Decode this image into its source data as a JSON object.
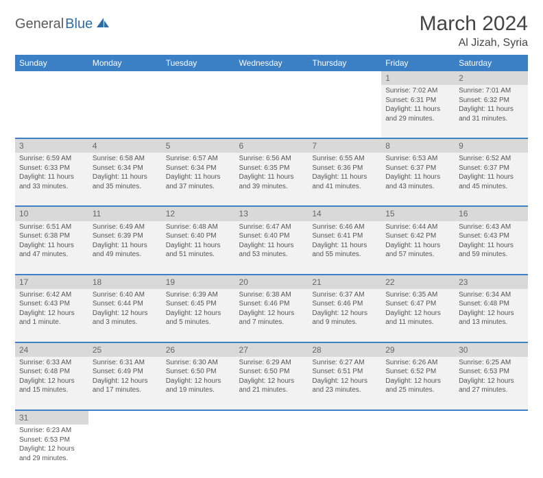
{
  "logo": {
    "part1": "General",
    "part2": "Blue"
  },
  "title": "March 2024",
  "location": "Al Jizah, Syria",
  "weekdays": [
    "Sunday",
    "Monday",
    "Tuesday",
    "Wednesday",
    "Thursday",
    "Friday",
    "Saturday"
  ],
  "colors": {
    "header_bg": "#3b7fc4",
    "daynum_bg": "#d9d9d9",
    "cell_bg": "#f2f2f2",
    "row_border": "#3b7fc4"
  },
  "weeks": [
    {
      "nums": [
        "",
        "",
        "",
        "",
        "",
        "1",
        "2"
      ],
      "cells": [
        {
          "empty": true
        },
        {
          "empty": true
        },
        {
          "empty": true
        },
        {
          "empty": true
        },
        {
          "empty": true
        },
        {
          "sunrise": "Sunrise: 7:02 AM",
          "sunset": "Sunset: 6:31 PM",
          "daylight": "Daylight: 11 hours and 29 minutes."
        },
        {
          "sunrise": "Sunrise: 7:01 AM",
          "sunset": "Sunset: 6:32 PM",
          "daylight": "Daylight: 11 hours and 31 minutes."
        }
      ]
    },
    {
      "nums": [
        "3",
        "4",
        "5",
        "6",
        "7",
        "8",
        "9"
      ],
      "cells": [
        {
          "sunrise": "Sunrise: 6:59 AM",
          "sunset": "Sunset: 6:33 PM",
          "daylight": "Daylight: 11 hours and 33 minutes."
        },
        {
          "sunrise": "Sunrise: 6:58 AM",
          "sunset": "Sunset: 6:34 PM",
          "daylight": "Daylight: 11 hours and 35 minutes."
        },
        {
          "sunrise": "Sunrise: 6:57 AM",
          "sunset": "Sunset: 6:34 PM",
          "daylight": "Daylight: 11 hours and 37 minutes."
        },
        {
          "sunrise": "Sunrise: 6:56 AM",
          "sunset": "Sunset: 6:35 PM",
          "daylight": "Daylight: 11 hours and 39 minutes."
        },
        {
          "sunrise": "Sunrise: 6:55 AM",
          "sunset": "Sunset: 6:36 PM",
          "daylight": "Daylight: 11 hours and 41 minutes."
        },
        {
          "sunrise": "Sunrise: 6:53 AM",
          "sunset": "Sunset: 6:37 PM",
          "daylight": "Daylight: 11 hours and 43 minutes."
        },
        {
          "sunrise": "Sunrise: 6:52 AM",
          "sunset": "Sunset: 6:37 PM",
          "daylight": "Daylight: 11 hours and 45 minutes."
        }
      ]
    },
    {
      "nums": [
        "10",
        "11",
        "12",
        "13",
        "14",
        "15",
        "16"
      ],
      "cells": [
        {
          "sunrise": "Sunrise: 6:51 AM",
          "sunset": "Sunset: 6:38 PM",
          "daylight": "Daylight: 11 hours and 47 minutes."
        },
        {
          "sunrise": "Sunrise: 6:49 AM",
          "sunset": "Sunset: 6:39 PM",
          "daylight": "Daylight: 11 hours and 49 minutes."
        },
        {
          "sunrise": "Sunrise: 6:48 AM",
          "sunset": "Sunset: 6:40 PM",
          "daylight": "Daylight: 11 hours and 51 minutes."
        },
        {
          "sunrise": "Sunrise: 6:47 AM",
          "sunset": "Sunset: 6:40 PM",
          "daylight": "Daylight: 11 hours and 53 minutes."
        },
        {
          "sunrise": "Sunrise: 6:46 AM",
          "sunset": "Sunset: 6:41 PM",
          "daylight": "Daylight: 11 hours and 55 minutes."
        },
        {
          "sunrise": "Sunrise: 6:44 AM",
          "sunset": "Sunset: 6:42 PM",
          "daylight": "Daylight: 11 hours and 57 minutes."
        },
        {
          "sunrise": "Sunrise: 6:43 AM",
          "sunset": "Sunset: 6:43 PM",
          "daylight": "Daylight: 11 hours and 59 minutes."
        }
      ]
    },
    {
      "nums": [
        "17",
        "18",
        "19",
        "20",
        "21",
        "22",
        "23"
      ],
      "cells": [
        {
          "sunrise": "Sunrise: 6:42 AM",
          "sunset": "Sunset: 6:43 PM",
          "daylight": "Daylight: 12 hours and 1 minute."
        },
        {
          "sunrise": "Sunrise: 6:40 AM",
          "sunset": "Sunset: 6:44 PM",
          "daylight": "Daylight: 12 hours and 3 minutes."
        },
        {
          "sunrise": "Sunrise: 6:39 AM",
          "sunset": "Sunset: 6:45 PM",
          "daylight": "Daylight: 12 hours and 5 minutes."
        },
        {
          "sunrise": "Sunrise: 6:38 AM",
          "sunset": "Sunset: 6:46 PM",
          "daylight": "Daylight: 12 hours and 7 minutes."
        },
        {
          "sunrise": "Sunrise: 6:37 AM",
          "sunset": "Sunset: 6:46 PM",
          "daylight": "Daylight: 12 hours and 9 minutes."
        },
        {
          "sunrise": "Sunrise: 6:35 AM",
          "sunset": "Sunset: 6:47 PM",
          "daylight": "Daylight: 12 hours and 11 minutes."
        },
        {
          "sunrise": "Sunrise: 6:34 AM",
          "sunset": "Sunset: 6:48 PM",
          "daylight": "Daylight: 12 hours and 13 minutes."
        }
      ]
    },
    {
      "nums": [
        "24",
        "25",
        "26",
        "27",
        "28",
        "29",
        "30"
      ],
      "cells": [
        {
          "sunrise": "Sunrise: 6:33 AM",
          "sunset": "Sunset: 6:48 PM",
          "daylight": "Daylight: 12 hours and 15 minutes."
        },
        {
          "sunrise": "Sunrise: 6:31 AM",
          "sunset": "Sunset: 6:49 PM",
          "daylight": "Daylight: 12 hours and 17 minutes."
        },
        {
          "sunrise": "Sunrise: 6:30 AM",
          "sunset": "Sunset: 6:50 PM",
          "daylight": "Daylight: 12 hours and 19 minutes."
        },
        {
          "sunrise": "Sunrise: 6:29 AM",
          "sunset": "Sunset: 6:50 PM",
          "daylight": "Daylight: 12 hours and 21 minutes."
        },
        {
          "sunrise": "Sunrise: 6:27 AM",
          "sunset": "Sunset: 6:51 PM",
          "daylight": "Daylight: 12 hours and 23 minutes."
        },
        {
          "sunrise": "Sunrise: 6:26 AM",
          "sunset": "Sunset: 6:52 PM",
          "daylight": "Daylight: 12 hours and 25 minutes."
        },
        {
          "sunrise": "Sunrise: 6:25 AM",
          "sunset": "Sunset: 6:53 PM",
          "daylight": "Daylight: 12 hours and 27 minutes."
        }
      ]
    },
    {
      "nums": [
        "31",
        "",
        "",
        "",
        "",
        "",
        ""
      ],
      "last": true,
      "cells": [
        {
          "sunrise": "Sunrise: 6:23 AM",
          "sunset": "Sunset: 6:53 PM",
          "daylight": "Daylight: 12 hours and 29 minutes."
        },
        {
          "empty": true
        },
        {
          "empty": true
        },
        {
          "empty": true
        },
        {
          "empty": true
        },
        {
          "empty": true
        },
        {
          "empty": true
        }
      ]
    }
  ]
}
